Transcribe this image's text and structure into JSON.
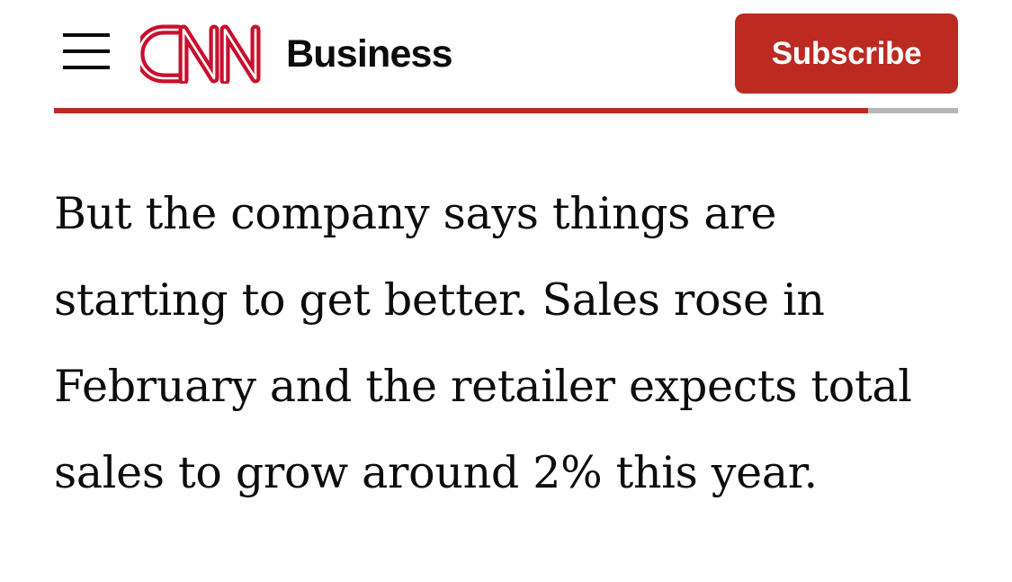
{
  "header": {
    "brand": "CNN",
    "section": "Business",
    "subscribe_label": "Subscribe"
  },
  "reading_progress": 0.9,
  "article": {
    "paragraph": "But the company says things are starting to get better. Sales rose in February and the retailer expects total sales to grow around 2% this year."
  },
  "colors": {
    "brand_red": "#bc2a21",
    "text": "#0c0c0c",
    "progress_track": "#b6b6b6",
    "background": "#ffffff"
  },
  "icons": {
    "menu": "hamburger-menu-icon",
    "logo": "cnn-logo"
  }
}
